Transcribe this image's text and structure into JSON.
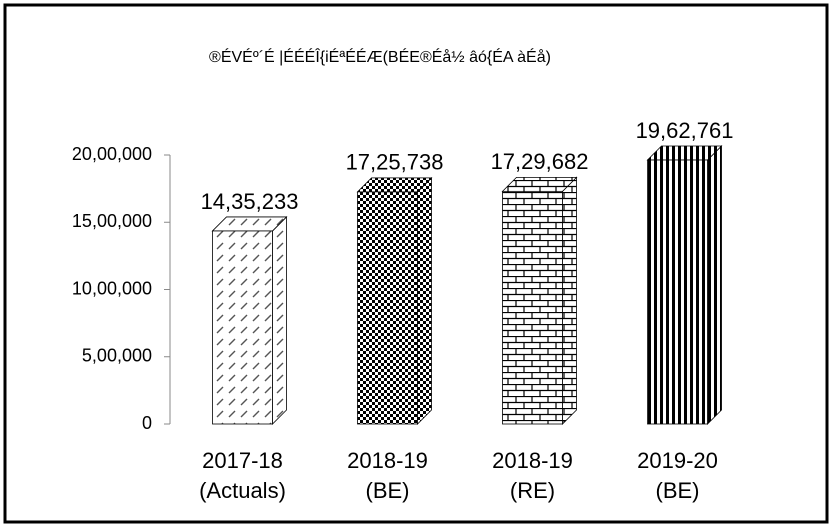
{
  "chart_data": {
    "type": "bar3d",
    "title": "®ÉVÉº´É |ÉÉÉÎ{iÉªÉÉÆ(BÉE®Éå½ âó{ÉA àÉå)",
    "categories": [
      [
        "2017-18",
        "(Actuals)"
      ],
      [
        "2018-19",
        "(BE)"
      ],
      [
        "2018-19",
        "(RE)"
      ],
      [
        "2019-20",
        "(BE)"
      ]
    ],
    "values": [
      1435233,
      1725738,
      1729682,
      1962761
    ],
    "value_labels": [
      "14,35,233",
      "17,25,738",
      "17,29,682",
      "19,62,761"
    ],
    "color": "#000000",
    "ylim": [
      0,
      2000000
    ],
    "yticks": [
      0,
      {
        "value": 500000,
        "label": "5,00,000"
      },
      {
        "value": 1000000,
        "label": "10,00,000"
      },
      {
        "value": 1500000,
        "label": "15,00,000"
      },
      {
        "value": 2000000,
        "label": "20,00,000"
      }
    ],
    "grid": false
  }
}
